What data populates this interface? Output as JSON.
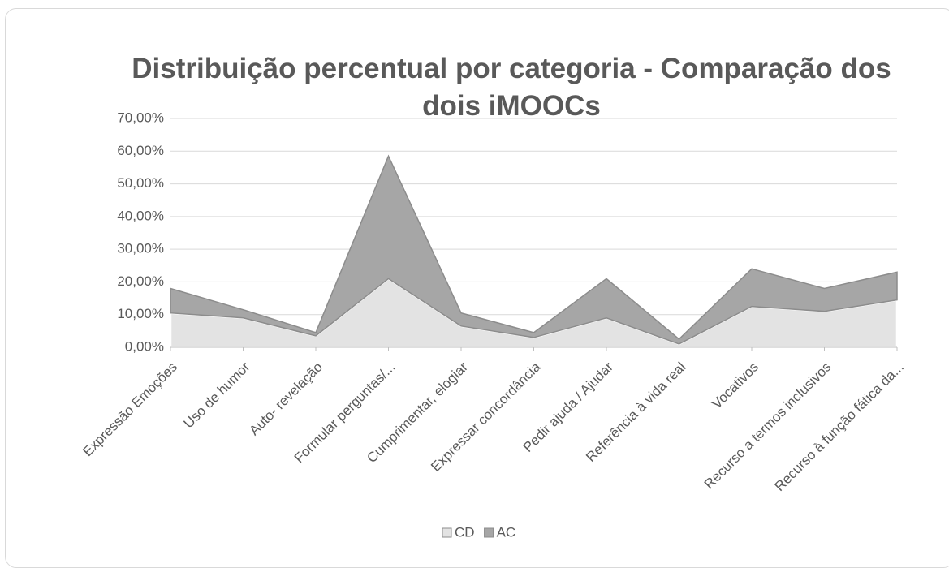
{
  "chart_data": {
    "type": "stacked_area",
    "title": "Distribuição percentual por categoria - Comparação dos dois iMOOCs",
    "categories": [
      "Expressão Emoções",
      "Uso de humor",
      "Auto- revelação",
      "Formular perguntas/...",
      "Cumprimentar, elogiar",
      "Expressar concordância",
      "Pedir ajuda / Ajudar",
      "Referência à vida real",
      "Vocativos",
      "Recurso a termos inclusivos",
      "Recurso à função fática da..."
    ],
    "series": [
      {
        "name": "CD",
        "color": "#e3e3e3",
        "values": [
          10.5,
          9,
          3.5,
          21,
          6.5,
          3,
          9,
          1,
          12.5,
          11,
          14.5
        ]
      },
      {
        "name": "AC",
        "color": "#a6a6a6",
        "values": [
          7.5,
          2.5,
          1,
          37.5,
          4,
          1.5,
          12,
          1.5,
          11.5,
          7,
          8.5
        ]
      }
    ],
    "ylim": [
      0,
      70
    ],
    "yticks": [
      {
        "value": 0,
        "label": "0,00%"
      },
      {
        "value": 10,
        "label": "10,00%"
      },
      {
        "value": 20,
        "label": "20,00%"
      },
      {
        "value": 30,
        "label": "30,00%"
      },
      {
        "value": 40,
        "label": "40,00%"
      },
      {
        "value": 50,
        "label": "50,00%"
      },
      {
        "value": 60,
        "label": "60,00%"
      },
      {
        "value": 70,
        "label": "70,00%"
      }
    ],
    "grid": true,
    "legend": "bottom"
  }
}
